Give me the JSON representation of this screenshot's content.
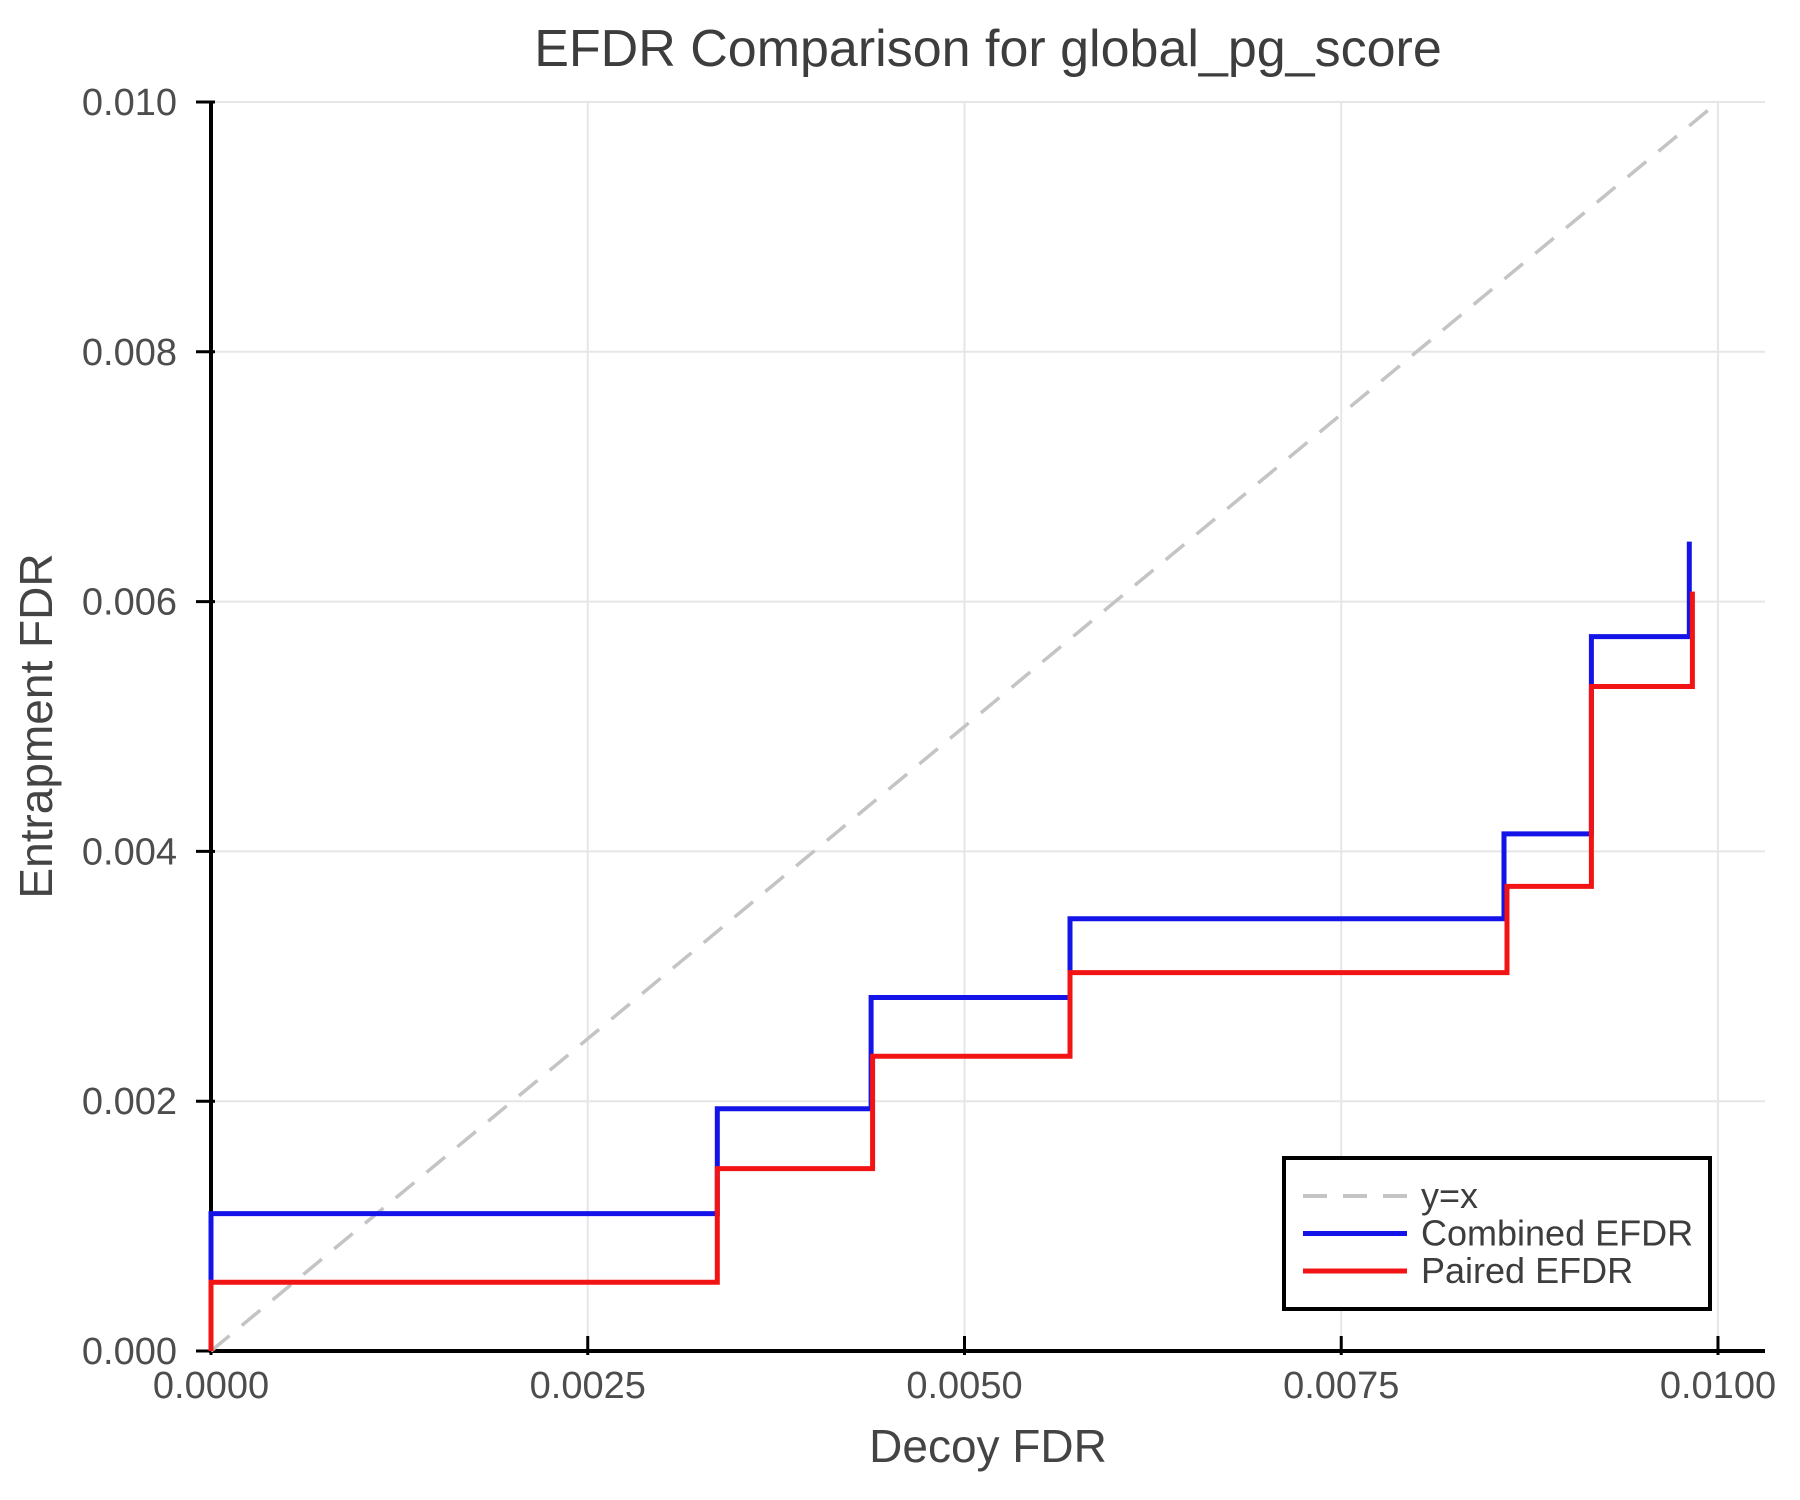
{
  "title": "EFDR Comparison for global_pg_score",
  "colors": {
    "background": "#ffffff",
    "grid": "#e6e6e6",
    "spine": "#000000",
    "tick_text": "#4d4d4d",
    "title_text": "#3d3d3d",
    "axis_label_text": "#444444",
    "identity_line": "#c4c4c4",
    "combined_line": "#1414e8",
    "paired_line": "#f21414",
    "legend_border": "#000000",
    "legend_fill": "#ffffff"
  },
  "chart_data": {
    "type": "line",
    "title": "EFDR Comparison for global_pg_score",
    "xlabel": "Decoy FDR",
    "ylabel": "Entrapment FDR",
    "xlim": [
      0,
      0.010312
    ],
    "ylim": [
      0,
      0.01
    ],
    "grid": true,
    "legend_position": "lower right",
    "x_ticks": [
      {
        "value": 0.0,
        "label": "0.0000"
      },
      {
        "value": 0.0025,
        "label": "0.0025"
      },
      {
        "value": 0.005,
        "label": "0.0050"
      },
      {
        "value": 0.0075,
        "label": "0.0075"
      },
      {
        "value": 0.01,
        "label": "0.0100"
      }
    ],
    "y_ticks": [
      {
        "value": 0.0,
        "label": "0.000"
      },
      {
        "value": 0.002,
        "label": "0.002"
      },
      {
        "value": 0.004,
        "label": "0.004"
      },
      {
        "value": 0.006,
        "label": "0.006"
      },
      {
        "value": 0.008,
        "label": "0.008"
      },
      {
        "value": 0.01,
        "label": "0.010"
      }
    ],
    "series": [
      {
        "name": "y=x",
        "color_key": "identity_line",
        "dashed": true,
        "line_width": 3.5,
        "points": [
          [
            0,
            0
          ],
          [
            0.01,
            0.01
          ]
        ]
      },
      {
        "name": "Combined EFDR",
        "color_key": "combined_line",
        "dashed": false,
        "line_width": 5,
        "points": [
          [
            0,
            0
          ],
          [
            0,
            0.0011
          ],
          [
            0.00336,
            0.0011
          ],
          [
            0.00336,
            0.00194
          ],
          [
            0.00438,
            0.00194
          ],
          [
            0.00438,
            0.00283
          ],
          [
            0.0057,
            0.00283
          ],
          [
            0.0057,
            0.00346
          ],
          [
            0.00858,
            0.00346
          ],
          [
            0.00858,
            0.00414
          ],
          [
            0.00916,
            0.00414
          ],
          [
            0.00916,
            0.00572
          ],
          [
            0.00981,
            0.00572
          ],
          [
            0.00981,
            0.00648
          ]
        ]
      },
      {
        "name": "Paired EFDR",
        "color_key": "paired_line",
        "dashed": false,
        "line_width": 5,
        "points": [
          [
            0,
            0
          ],
          [
            0,
            0.00055
          ],
          [
            0.00336,
            0.00055
          ],
          [
            0.00336,
            0.00146
          ],
          [
            0.00439,
            0.00146
          ],
          [
            0.00439,
            0.00236
          ],
          [
            0.0057,
            0.00236
          ],
          [
            0.0057,
            0.00303
          ],
          [
            0.0086,
            0.00303
          ],
          [
            0.0086,
            0.00372
          ],
          [
            0.00916,
            0.00372
          ],
          [
            0.00916,
            0.00532
          ],
          [
            0.00983,
            0.00532
          ],
          [
            0.00983,
            0.00608
          ]
        ]
      }
    ]
  },
  "legend": {
    "entries": [
      "y=x",
      "Combined EFDR",
      "Paired EFDR"
    ]
  }
}
